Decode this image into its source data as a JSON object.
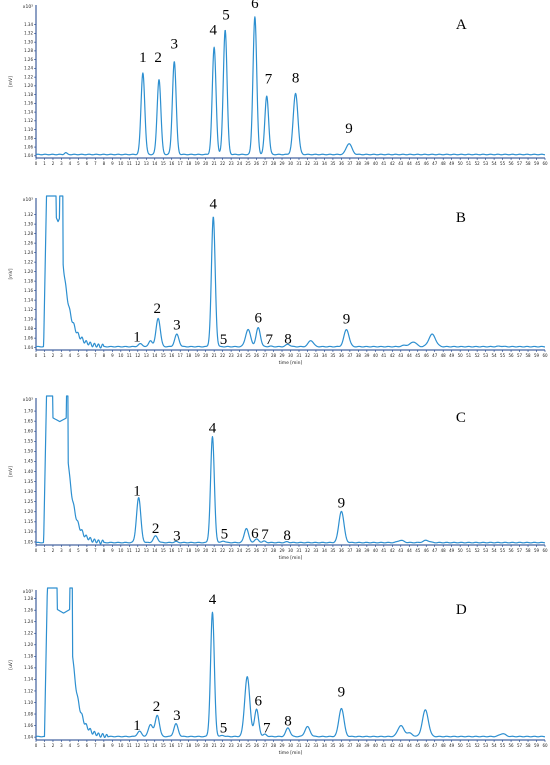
{
  "chart_data": [
    {
      "type": "line",
      "panel_letter": "A",
      "multiplier": "x10³",
      "ylabel": "[mV]",
      "xlabel": "",
      "xlim": [
        0,
        60
      ],
      "ylim": [
        1.035,
        1.385
      ],
      "yticks": [
        1.04,
        1.06,
        1.08,
        1.1,
        1.12,
        1.14,
        1.16,
        1.18,
        1.2,
        1.22,
        1.24,
        1.26,
        1.28,
        1.3,
        1.32,
        1.34
      ],
      "baseline": 1.043,
      "baseline_noise": [
        [
          3.5,
          0.004
        ]
      ],
      "peaks": [
        {
          "label": "1",
          "x": 12.6,
          "height": 1.23,
          "width": 0.22,
          "label_x": 12.6,
          "label_y": 1.255
        },
        {
          "label": "2",
          "x": 14.5,
          "height": 1.215,
          "width": 0.22,
          "label_x": 14.4,
          "label_y": 1.255
        },
        {
          "label": "3",
          "x": 16.3,
          "height": 1.256,
          "width": 0.22,
          "label_x": 16.3,
          "label_y": 1.285
        },
        {
          "label": "4",
          "x": 21.0,
          "height": 1.288,
          "width": 0.22,
          "label_x": 20.9,
          "label_y": 1.317
        },
        {
          "label": "5",
          "x": 22.3,
          "height": 1.328,
          "width": 0.22,
          "label_x": 22.4,
          "label_y": 1.352
        },
        {
          "label": "6",
          "x": 25.8,
          "height": 1.358,
          "width": 0.22,
          "label_x": 25.8,
          "label_y": 1.378
        },
        {
          "label": "7",
          "x": 27.2,
          "height": 1.177,
          "width": 0.22,
          "label_x": 27.4,
          "label_y": 1.205
        },
        {
          "label": "8",
          "x": 30.6,
          "height": 1.183,
          "width": 0.28,
          "label_x": 30.6,
          "label_y": 1.208
        },
        {
          "label": "9",
          "x": 36.9,
          "height": 1.068,
          "width": 0.33,
          "label_x": 36.9,
          "label_y": 1.092
        }
      ],
      "series_color": "#2d8fd0"
    },
    {
      "type": "line",
      "panel_letter": "B",
      "multiplier": "x10³",
      "ylabel": "[mV]",
      "xlabel": "time [min]",
      "xlim": [
        0,
        60
      ],
      "ylim": [
        1.035,
        1.355
      ],
      "yticks": [
        1.04,
        1.06,
        1.08,
        1.1,
        1.12,
        1.14,
        1.16,
        1.18,
        1.2,
        1.22,
        1.24,
        1.26,
        1.28,
        1.3,
        1.32
      ],
      "baseline": 1.042,
      "solvent_front": {
        "start": 1.1,
        "top_x": [
          1.3,
          2.4,
          2.8,
          3.2
        ],
        "tail_end": 8.0
      },
      "peaks": [
        {
          "label": "1",
          "x": 12.3,
          "height": 1.048,
          "width": 0.25,
          "label_x": 11.9,
          "label_y": 1.053
        },
        {
          "label": "",
          "x": 13.5,
          "height": 1.055,
          "width": 0.2
        },
        {
          "label": "2",
          "x": 14.4,
          "height": 1.102,
          "width": 0.25,
          "label_x": 14.3,
          "label_y": 1.113
        },
        {
          "label": "3",
          "x": 16.6,
          "height": 1.068,
          "width": 0.25,
          "label_x": 16.6,
          "label_y": 1.078
        },
        {
          "label": "4",
          "x": 20.9,
          "height": 1.315,
          "width": 0.22,
          "label_x": 20.9,
          "label_y": 1.333
        },
        {
          "label": "5",
          "x": 22.0,
          "height": 1.042,
          "width": 0.2,
          "label_x": 22.1,
          "label_y": 1.048
        },
        {
          "label": "",
          "x": 25.0,
          "height": 1.078,
          "width": 0.3
        },
        {
          "label": "6",
          "x": 26.2,
          "height": 1.082,
          "width": 0.25,
          "label_x": 26.2,
          "label_y": 1.093
        },
        {
          "label": "7",
          "x": 27.6,
          "height": 1.043,
          "width": 0.2,
          "label_x": 27.5,
          "label_y": 1.048
        },
        {
          "label": "8",
          "x": 29.7,
          "height": 1.047,
          "width": 0.25,
          "label_x": 29.7,
          "label_y": 1.049
        },
        {
          "label": "",
          "x": 32.4,
          "height": 1.055,
          "width": 0.3
        },
        {
          "label": "9",
          "x": 36.6,
          "height": 1.078,
          "width": 0.3,
          "label_x": 36.6,
          "label_y": 1.091
        },
        {
          "label": "",
          "x": 43.5,
          "height": 1.045,
          "width": 0.35
        },
        {
          "label": "",
          "x": 44.5,
          "height": 1.052,
          "width": 0.35
        },
        {
          "label": "",
          "x": 46.7,
          "height": 1.068,
          "width": 0.4
        },
        {
          "label": "",
          "x": 54.7,
          "height": 1.043,
          "width": 0.35
        }
      ],
      "series_color": "#2d8fd0"
    },
    {
      "type": "line",
      "panel_letter": "C",
      "multiplier": "x10³",
      "ylabel": "[mV]",
      "xlabel": "time [min]",
      "xlim": [
        0,
        60
      ],
      "ylim": [
        1.035,
        1.765
      ],
      "yticks": [
        1.05,
        1.1,
        1.15,
        1.2,
        1.25,
        1.3,
        1.35,
        1.4,
        1.45,
        1.5,
        1.55,
        1.6,
        1.65,
        1.7
      ],
      "baseline": 1.047,
      "solvent_front": {
        "start": 1.1,
        "top_x": [
          1.3,
          2.0,
          3.6,
          3.8
        ],
        "tail_end": 8.0
      },
      "peaks": [
        {
          "label": "1",
          "x": 12.1,
          "height": 1.27,
          "width": 0.25,
          "label_x": 11.9,
          "label_y": 1.282
        },
        {
          "label": "2",
          "x": 14.1,
          "height": 1.08,
          "width": 0.25,
          "label_x": 14.1,
          "label_y": 1.095
        },
        {
          "label": "3",
          "x": 16.5,
          "height": 1.052,
          "width": 0.2,
          "label_x": 16.6,
          "label_y": 1.057
        },
        {
          "label": "4",
          "x": 20.8,
          "height": 1.572,
          "width": 0.22,
          "label_x": 20.8,
          "label_y": 1.593
        },
        {
          "label": "5",
          "x": 22.1,
          "height": 1.055,
          "width": 0.2,
          "label_x": 22.2,
          "label_y": 1.068
        },
        {
          "label": "",
          "x": 24.8,
          "height": 1.118,
          "width": 0.25
        },
        {
          "label": "6",
          "x": 26.0,
          "height": 1.064,
          "width": 0.25,
          "label_x": 25.8,
          "label_y": 1.07
        },
        {
          "label": "7",
          "x": 26.9,
          "height": 1.054,
          "width": 0.2,
          "label_x": 27.0,
          "label_y": 1.064
        },
        {
          "label": "8",
          "x": 29.6,
          "height": 1.051,
          "width": 0.2,
          "label_x": 29.6,
          "label_y": 1.061
        },
        {
          "label": "9",
          "x": 36.0,
          "height": 1.203,
          "width": 0.3,
          "label_x": 36.0,
          "label_y": 1.22
        },
        {
          "label": "",
          "x": 43.0,
          "height": 1.058,
          "width": 0.35
        },
        {
          "label": "",
          "x": 46.0,
          "height": 1.058,
          "width": 0.35
        }
      ],
      "series_color": "#2d8fd0"
    },
    {
      "type": "line",
      "panel_letter": "D",
      "multiplier": "x10³",
      "ylabel": "[uV]",
      "xlabel": "time [min]",
      "xlim": [
        0,
        60
      ],
      "ylim": [
        1.035,
        1.295
      ],
      "yticks": [
        1.04,
        1.06,
        1.08,
        1.1,
        1.12,
        1.14,
        1.16,
        1.18,
        1.2,
        1.22,
        1.24,
        1.26,
        1.28
      ],
      "baseline": 1.041,
      "solvent_front": {
        "start": 1.2,
        "top_x": [
          1.4,
          2.5,
          4.0,
          4.3
        ],
        "tail_end": 8.5
      },
      "peaks": [
        {
          "label": "1",
          "x": 12.2,
          "height": 1.05,
          "width": 0.25,
          "label_x": 11.9,
          "label_y": 1.052
        },
        {
          "label": "",
          "x": 13.5,
          "height": 1.062,
          "width": 0.25
        },
        {
          "label": "2",
          "x": 14.3,
          "height": 1.078,
          "width": 0.25,
          "label_x": 14.2,
          "label_y": 1.085
        },
        {
          "label": "3",
          "x": 16.5,
          "height": 1.063,
          "width": 0.25,
          "label_x": 16.6,
          "label_y": 1.07
        },
        {
          "label": "4",
          "x": 20.8,
          "height": 1.256,
          "width": 0.22,
          "label_x": 20.8,
          "label_y": 1.271
        },
        {
          "label": "5",
          "x": 22.0,
          "height": 1.043,
          "width": 0.2,
          "label_x": 22.1,
          "label_y": 1.048
        },
        {
          "label": "",
          "x": 24.9,
          "height": 1.145,
          "width": 0.3
        },
        {
          "label": "6",
          "x": 26.0,
          "height": 1.088,
          "width": 0.25,
          "label_x": 26.2,
          "label_y": 1.095
        },
        {
          "label": "7",
          "x": 27.0,
          "height": 1.045,
          "width": 0.2,
          "label_x": 27.2,
          "label_y": 1.048
        },
        {
          "label": "8",
          "x": 29.7,
          "height": 1.056,
          "width": 0.25,
          "label_x": 29.7,
          "label_y": 1.06
        },
        {
          "label": "",
          "x": 32.0,
          "height": 1.058,
          "width": 0.3
        },
        {
          "label": "9",
          "x": 36.0,
          "height": 1.09,
          "width": 0.3,
          "label_x": 36.0,
          "label_y": 1.11
        },
        {
          "label": "",
          "x": 43.0,
          "height": 1.06,
          "width": 0.35
        },
        {
          "label": "",
          "x": 44.0,
          "height": 1.047,
          "width": 0.35
        },
        {
          "label": "",
          "x": 45.9,
          "height": 1.087,
          "width": 0.35
        },
        {
          "label": "",
          "x": 55.0,
          "height": 1.046,
          "width": 0.35
        }
      ],
      "series_color": "#2d8fd0"
    }
  ]
}
